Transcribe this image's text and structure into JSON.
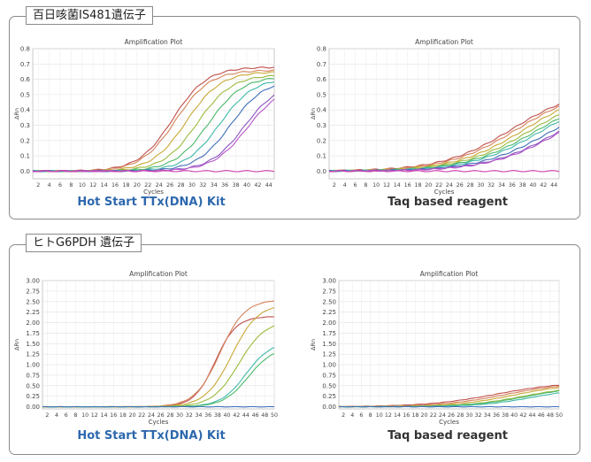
{
  "sections": [
    {
      "title": "百日咳菌IS481遺伝子"
    },
    {
      "title": "ヒトG6PDH 遺伝子"
    }
  ],
  "captions": [
    "Hot Start TTx(DNA) Kit",
    "Taq based reagent",
    "Hot Start TTx(DNA) Kit",
    "Taq based reagent"
  ],
  "colors": {
    "caption_blue": "#2d68ad",
    "caption_dark": "#333333",
    "grid": "#dcdcdc",
    "border": "#8a8a8a"
  },
  "chart_data": [
    {
      "type": "line",
      "title": "Amplification Plot",
      "xlabel": "Cycles",
      "ylabel": "ΔRn",
      "xlim": [
        1,
        45
      ],
      "ylim": [
        -0.05,
        0.8
      ],
      "xticks": [
        2,
        4,
        6,
        8,
        10,
        12,
        14,
        16,
        18,
        20,
        22,
        24,
        26,
        28,
        30,
        32,
        34,
        36,
        38,
        40,
        42,
        44
      ],
      "yticks": [
        0.0,
        0.1,
        0.2,
        0.3,
        0.4,
        0.5,
        0.6,
        0.7,
        0.8
      ],
      "ytick_labels": [
        "0.0",
        "0.1",
        "0.2",
        "0.3",
        "0.4",
        "0.5",
        "0.6",
        "0.7",
        "0.8"
      ],
      "grid": true,
      "series": [
        {
          "color": "#c0504d",
          "midpoint": 26.5,
          "plateau": 0.68,
          "slope": 0.32
        },
        {
          "color": "#d4825a",
          "midpoint": 27.0,
          "plateau": 0.66,
          "slope": 0.32
        },
        {
          "color": "#c8a835",
          "midpoint": 29.0,
          "plateau": 0.65,
          "slope": 0.32
        },
        {
          "color": "#9bbb3c",
          "midpoint": 31.0,
          "plateau": 0.63,
          "slope": 0.32
        },
        {
          "color": "#4cb86a",
          "midpoint": 33.0,
          "plateau": 0.62,
          "slope": 0.32
        },
        {
          "color": "#3fb8a8",
          "midpoint": 35.0,
          "plateau": 0.61,
          "slope": 0.32
        },
        {
          "color": "#3f6fb8",
          "midpoint": 37.0,
          "plateau": 0.6,
          "slope": 0.32
        },
        {
          "color": "#8a55c0",
          "midpoint": 39.5,
          "plateau": 0.58,
          "slope": 0.32
        },
        {
          "color": "#b455c8",
          "midpoint": 40.0,
          "plateau": 0.56,
          "slope": 0.32
        },
        {
          "color": "#d040b0",
          "flat": 0.0
        }
      ]
    },
    {
      "type": "line",
      "title": "Amplification Plot",
      "xlabel": "Cycles",
      "ylabel": "ΔRn",
      "xlim": [
        1,
        45
      ],
      "ylim": [
        -0.05,
        0.8
      ],
      "xticks": [
        2,
        4,
        6,
        8,
        10,
        12,
        14,
        16,
        18,
        20,
        22,
        24,
        26,
        28,
        30,
        32,
        34,
        36,
        38,
        40,
        42,
        44
      ],
      "yticks": [
        0.0,
        0.1,
        0.2,
        0.3,
        0.4,
        0.5,
        0.6,
        0.7,
        0.8
      ],
      "ytick_labels": [
        "0.0",
        "0.1",
        "0.2",
        "0.3",
        "0.4",
        "0.5",
        "0.6",
        "0.7",
        "0.8"
      ],
      "grid": true,
      "series": [
        {
          "color": "#c0504d",
          "midpoint": 36.0,
          "plateau": 0.55,
          "slope": 0.15
        },
        {
          "color": "#d4825a",
          "midpoint": 37.0,
          "plateau": 0.55,
          "slope": 0.15
        },
        {
          "color": "#c8a835",
          "midpoint": 38.5,
          "plateau": 0.55,
          "slope": 0.15
        },
        {
          "color": "#9bbb3c",
          "midpoint": 39.5,
          "plateau": 0.53,
          "slope": 0.15
        },
        {
          "color": "#4cb86a",
          "midpoint": 40.5,
          "plateau": 0.52,
          "slope": 0.15
        },
        {
          "color": "#3fb8a8",
          "midpoint": 41.5,
          "plateau": 0.52,
          "slope": 0.15
        },
        {
          "color": "#3f6fb8",
          "midpoint": 43.0,
          "plateau": 0.5,
          "slope": 0.15
        },
        {
          "color": "#8a55c0",
          "midpoint": 44.5,
          "plateau": 0.5,
          "slope": 0.15
        },
        {
          "color": "#b455c8",
          "midpoint": 45.0,
          "plateau": 0.5,
          "slope": 0.15
        },
        {
          "color": "#d040b0",
          "flat": 0.0
        }
      ]
    },
    {
      "type": "line",
      "title": "Amplification Plot",
      "xlabel": "Cycles",
      "ylabel": "ΔRn",
      "xlim": [
        1,
        50
      ],
      "ylim": [
        -0.05,
        3.0
      ],
      "xticks": [
        2,
        4,
        6,
        8,
        10,
        12,
        14,
        16,
        18,
        20,
        22,
        24,
        26,
        28,
        30,
        32,
        34,
        36,
        38,
        40,
        42,
        44,
        46,
        48,
        50
      ],
      "yticks": [
        0,
        0.25,
        0.5,
        0.75,
        1.0,
        1.25,
        1.5,
        1.75,
        2.0,
        2.25,
        2.5,
        2.75,
        3.0
      ],
      "ytick_labels": [
        "0.00",
        "0.25",
        "0.50",
        "0.75",
        "1.00",
        "1.25",
        "1.50",
        "1.75",
        "2.00",
        "2.25",
        "2.50",
        "2.75",
        "3.00"
      ],
      "grid": true,
      "series": [
        {
          "color": "#c0504d",
          "midpoint": 37.5,
          "plateau": 2.15,
          "slope": 0.45
        },
        {
          "color": "#d4825a",
          "midpoint": 38.5,
          "plateau": 2.55,
          "slope": 0.38
        },
        {
          "color": "#c8a835",
          "midpoint": 41.0,
          "plateau": 2.45,
          "slope": 0.36
        },
        {
          "color": "#9bbb3c",
          "midpoint": 42.5,
          "plateau": 2.05,
          "slope": 0.36
        },
        {
          "color": "#3fb8a8",
          "midpoint": 44.0,
          "plateau": 1.55,
          "slope": 0.38
        },
        {
          "color": "#4cb86a",
          "midpoint": 44.5,
          "plateau": 1.42,
          "slope": 0.38
        },
        {
          "color": "#3f6fb8",
          "flat": 0.0
        }
      ]
    },
    {
      "type": "line",
      "title": "Amplification Plot",
      "xlabel": "Cycles",
      "ylabel": "ΔRn",
      "xlim": [
        1,
        50
      ],
      "ylim": [
        -0.05,
        3.0
      ],
      "xticks": [
        2,
        4,
        6,
        8,
        10,
        12,
        14,
        16,
        18,
        20,
        22,
        24,
        26,
        28,
        30,
        32,
        34,
        36,
        38,
        40,
        42,
        44,
        46,
        48,
        50
      ],
      "yticks": [
        0,
        0.25,
        0.5,
        0.75,
        1.0,
        1.25,
        1.5,
        1.75,
        2.0,
        2.25,
        2.5,
        2.75,
        3.0
      ],
      "ytick_labels": [
        "0.00",
        "0.25",
        "0.50",
        "0.75",
        "1.00",
        "1.25",
        "1.50",
        "1.75",
        "2.00",
        "2.25",
        "2.50",
        "2.75",
        "3.00"
      ],
      "grid": true,
      "series": [
        {
          "color": "#c0504d",
          "midpoint": 36.0,
          "plateau": 0.6,
          "slope": 0.13
        },
        {
          "color": "#d4825a",
          "midpoint": 38.0,
          "plateau": 0.58,
          "slope": 0.14
        },
        {
          "color": "#c8a835",
          "midpoint": 40.0,
          "plateau": 0.56,
          "slope": 0.15
        },
        {
          "color": "#9bbb3c",
          "midpoint": 42.0,
          "plateau": 0.5,
          "slope": 0.16
        },
        {
          "color": "#4cb86a",
          "midpoint": 43.0,
          "plateau": 0.5,
          "slope": 0.16
        },
        {
          "color": "#3fb8a8",
          "midpoint": 44.0,
          "plateau": 0.45,
          "slope": 0.17
        },
        {
          "color": "#3f6fb8",
          "flat": 0.0
        }
      ]
    }
  ]
}
